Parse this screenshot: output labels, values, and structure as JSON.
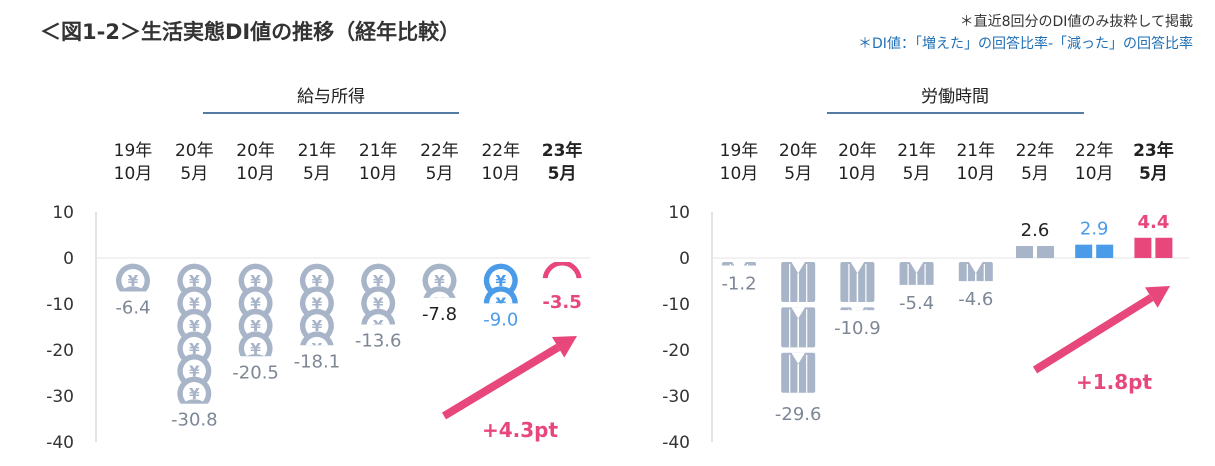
{
  "title": "＜図1-2＞生活実態DI値の推移（経年比較）",
  "notes": [
    "＊直近8回分のDI値のみ抜粋して掲載",
    "＊DI値：「増えた」の回答比率-「減った」の回答比率"
  ],
  "colors": {
    "gray": "#a8b4c8",
    "blue": "#4a9be8",
    "pink": "#e8477c",
    "navy": "#1f4e8c",
    "axis": "#c8c8c8"
  },
  "chart_data": [
    {
      "type": "bar",
      "title": "給与所得",
      "icon": "yen-coin-icon",
      "categories": [
        [
          "19年",
          "10月"
        ],
        [
          "20年",
          "5月"
        ],
        [
          "20年",
          "10月"
        ],
        [
          "21年",
          "5月"
        ],
        [
          "21年",
          "10月"
        ],
        [
          "22年",
          "5月"
        ],
        [
          "22年",
          "10月"
        ],
        [
          "23年",
          "5月"
        ]
      ],
      "values": [
        -6.4,
        -30.8,
        -20.5,
        -18.1,
        -13.6,
        -7.8,
        -9.0,
        -3.5
      ],
      "labels": [
        "-6.4",
        "-30.8",
        "-20.5",
        "-18.1",
        "-13.6",
        "-7.8",
        "-9.0",
        "-3.5"
      ],
      "ylim": [
        -40,
        10
      ],
      "yticks": [
        "10",
        "0",
        "-10",
        "-20",
        "-30",
        "-40"
      ],
      "annotation": "+4.3pt",
      "grid": false
    },
    {
      "type": "bar",
      "title": "労働時間",
      "icon": "shirt-icon",
      "categories": [
        [
          "19年",
          "10月"
        ],
        [
          "20年",
          "5月"
        ],
        [
          "20年",
          "10月"
        ],
        [
          "21年",
          "5月"
        ],
        [
          "21年",
          "10月"
        ],
        [
          "22年",
          "5月"
        ],
        [
          "22年",
          "10月"
        ],
        [
          "23年",
          "5月"
        ]
      ],
      "values": [
        -1.2,
        -29.6,
        -10.9,
        -5.4,
        -4.6,
        2.6,
        2.9,
        4.4
      ],
      "labels": [
        "-1.2",
        "-29.6",
        "-10.9",
        "-5.4",
        "-4.6",
        "2.6",
        "2.9",
        "4.4"
      ],
      "ylim": [
        -40,
        10
      ],
      "yticks": [
        "10",
        "0",
        "-10",
        "-20",
        "-30",
        "-40"
      ],
      "annotation": "+1.8pt",
      "grid": false
    }
  ]
}
